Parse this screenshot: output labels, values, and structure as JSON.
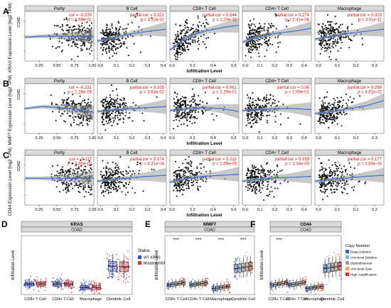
{
  "chart_data": [
    {
      "type": "scatter",
      "panel": "A",
      "gene": "KRAS",
      "ylabel": "KRAS Expression Level (log2 TPM)",
      "xlabel": "Infiltration Level",
      "cancer": "COAD",
      "facets": [
        {
          "title": "Purity",
          "stat_label": "cor",
          "cor": "-0.030",
          "p": "4.69e-02",
          "xticks": [
            "0.25",
            "0.50",
            "0.75",
            "1.00"
          ],
          "xlim": [
            0.05,
            1.02
          ],
          "fit": [
            0.52,
            0.5,
            0.5,
            0.5,
            0.51
          ]
        },
        {
          "title": "B Cell",
          "stat_label": "partial.cor",
          "cor": "0.322",
          "p": "3.52e-11",
          "xticks": [
            "0.0",
            "0.1",
            "0.2",
            "0.3",
            "0.4"
          ],
          "xlim": [
            -0.02,
            0.42
          ],
          "fit": [
            0.6,
            0.52,
            0.45,
            0.4,
            0.36
          ]
        },
        {
          "title": "CD8+ T Cell",
          "stat_label": "partial.cor",
          "cor": "0.544",
          "p": "1.20e-32",
          "xticks": [
            "0.0",
            "0.2",
            "0.4",
            "0.6"
          ],
          "xlim": [
            -0.02,
            0.65
          ],
          "fit": [
            0.78,
            0.52,
            0.4,
            0.33,
            0.28
          ]
        },
        {
          "title": "CD4+ T Cell",
          "stat_label": "partial.cor",
          "cor": "0.274",
          "p": "2.41e-08",
          "xticks": [
            "0.0",
            "0.1",
            "0.2",
            "0.3",
            "0.4"
          ],
          "xlim": [
            -0.02,
            0.45
          ],
          "fit": [
            0.62,
            0.5,
            0.44,
            0.4,
            0.34
          ]
        },
        {
          "title": "Macrophage",
          "stat_label": "partial.cor",
          "cor": "0.323",
          "p": "3.01e-11",
          "xticks": [
            "0.0",
            "0.1",
            "0.2",
            "0.3"
          ],
          "xlim": [
            -0.02,
            0.35
          ],
          "fit": [
            0.56,
            0.5,
            0.44,
            0.4,
            0.36
          ]
        }
      ]
    },
    {
      "type": "scatter",
      "panel": "B",
      "gene": "MMP7",
      "ylabel": "MMP7 Expression Level (log2 TPM)",
      "xlabel": "Infiltration Level",
      "cancer": "COAD",
      "facets": [
        {
          "title": "Purity",
          "stat_label": "cor",
          "cor": "-0.231",
          "p": "2.28e-06",
          "xticks": [
            "0.25",
            "0.50",
            "0.75",
            "1.00"
          ],
          "xlim": [
            0.05,
            1.02
          ],
          "fit": [
            0.5,
            0.46,
            0.48,
            0.52,
            0.58
          ]
        },
        {
          "title": "B Cell",
          "stat_label": "partial.cor",
          "cor": "0.105",
          "p": "3.63e-02",
          "xticks": [
            "0.0",
            "0.1",
            "0.2",
            "0.3",
            "0.4"
          ],
          "xlim": [
            -0.02,
            0.42
          ],
          "fit": [
            0.56,
            0.52,
            0.5,
            0.48,
            0.46
          ]
        },
        {
          "title": "CD8+ T Cell",
          "stat_label": "partial.cor",
          "cor": "0.061",
          "p": "2.29e-01",
          "xticks": [
            "0.0",
            "0.2",
            "0.4",
            "0.6"
          ],
          "xlim": [
            -0.02,
            0.65
          ],
          "fit": [
            0.54,
            0.5,
            0.48,
            0.5,
            0.56
          ]
        },
        {
          "title": "CD4+ T Cell",
          "stat_label": "partial.cor",
          "cor": "0.08",
          "p": "1.09e-01",
          "xticks": [
            "0.0",
            "0.1",
            "0.2",
            "0.3",
            "0.4"
          ],
          "xlim": [
            -0.02,
            0.45
          ],
          "fit": [
            0.54,
            0.52,
            0.5,
            0.5,
            0.52
          ]
        },
        {
          "title": "Macrophage",
          "stat_label": "partial.cor",
          "cor": "0.098",
          "p": "4.81e-02",
          "xticks": [
            "0.0",
            "0.1",
            "0.2",
            "0.3"
          ],
          "xlim": [
            -0.02,
            0.35
          ],
          "fit": [
            0.6,
            0.56,
            0.5,
            0.44,
            0.34
          ]
        }
      ]
    },
    {
      "type": "scatter",
      "panel": "C",
      "gene": "CD44",
      "ylabel": "CD44 Expression Level (log2 TPM)",
      "xlabel": "Infiltration Level",
      "cancer": "COAD",
      "facets": [
        {
          "title": "Purity",
          "stat_label": "cor",
          "cor": "-0.117",
          "p": "1.65e-02",
          "xticks": [
            "0.25",
            "0.50",
            "0.75",
            "1.00"
          ],
          "xlim": [
            0.05,
            1.02
          ],
          "fit": [
            0.46,
            0.46,
            0.46,
            0.46,
            0.46
          ]
        },
        {
          "title": "B Cell",
          "stat_label": "partial.cor",
          "cor": "0.174",
          "p": "4.31e-04",
          "xticks": [
            "0.0",
            "0.1",
            "0.2",
            "0.3",
            "0.4"
          ],
          "xlim": [
            -0.02,
            0.42
          ],
          "fit": [
            0.52,
            0.48,
            0.45,
            0.42,
            0.4
          ]
        },
        {
          "title": "CD8+ T Cell",
          "stat_label": "partial.cor",
          "cor": "0.212",
          "p": "1.69e-05",
          "xticks": [
            "0.0",
            "0.2",
            "0.4",
            "0.6"
          ],
          "xlim": [
            -0.02,
            0.65
          ],
          "fit": [
            0.54,
            0.46,
            0.42,
            0.4,
            0.38
          ]
        },
        {
          "title": "CD4+ T Cell",
          "stat_label": "partial.cor",
          "cor": "0.159",
          "p": "1.34e-03",
          "xticks": [
            "0.0",
            "0.1",
            "0.2",
            "0.3",
            "0.4"
          ],
          "xlim": [
            -0.02,
            0.45
          ],
          "fit": [
            0.52,
            0.48,
            0.45,
            0.44,
            0.42
          ]
        },
        {
          "title": "Macrophage",
          "stat_label": "partial.cor",
          "cor": "0.177",
          "p": "3.50e-04",
          "xticks": [
            "0.0",
            "0.1",
            "0.2",
            "0.3"
          ],
          "xlim": [
            -0.02,
            0.35
          ],
          "fit": [
            0.52,
            0.48,
            0.45,
            0.42,
            0.4
          ]
        }
      ]
    },
    {
      "type": "box",
      "panel": "D",
      "title": "KRAS",
      "subtitle": "COAD",
      "ylabel": "Infiltration Level",
      "categories": [
        "CD8+ T Cell",
        "CD4+ T Cell",
        "Macrophage",
        "Dendritic Cell"
      ],
      "legend_title": "Status",
      "legend_placement": "right",
      "series": [
        {
          "name": "WT KRAS",
          "color": "#3a48c8",
          "medians": [
            0.18,
            0.18,
            0.12,
            0.48
          ]
        },
        {
          "name": "Mutated KRAS",
          "color": "#d8343c",
          "medians": [
            0.18,
            0.18,
            0.12,
            0.47
          ]
        }
      ],
      "ylim": [
        0,
        1
      ]
    },
    {
      "type": "box",
      "panel": "E",
      "title": "MMP7",
      "subtitle": "COAD",
      "ylabel": "Infiltration Level",
      "categories": [
        "CD8+ T Cell",
        "CD4+ T Cell",
        "Macrophage",
        "Dendritic Cell"
      ],
      "significance": [
        "***",
        "***",
        "***",
        "***"
      ],
      "ylim": [
        0,
        1
      ]
    },
    {
      "type": "box",
      "panel": "F",
      "title": "CD44",
      "subtitle": "COAD",
      "ylabel": "Infiltration Level",
      "categories": [
        "CD8+ T Cell",
        "CD4+ T Cell",
        "Macrophage",
        "Dendritic Cell"
      ],
      "significance": [
        "***",
        "",
        "",
        ""
      ],
      "ylim": [
        0,
        1
      ],
      "legend_title": "Copy Number",
      "legend_placement": "right"
    }
  ],
  "copy_number_legend": [
    {
      "name": "Deep Deletion",
      "color": "#3b5cc6"
    },
    {
      "name": "Arm-level Deletion",
      "color": "#7fb0e0"
    },
    {
      "name": "Diploid/Normal",
      "color": "#9e9e9e"
    },
    {
      "name": "Arm-level Gain",
      "color": "#f0a860"
    },
    {
      "name": "High Amplification",
      "color": "#d0322c"
    }
  ]
}
